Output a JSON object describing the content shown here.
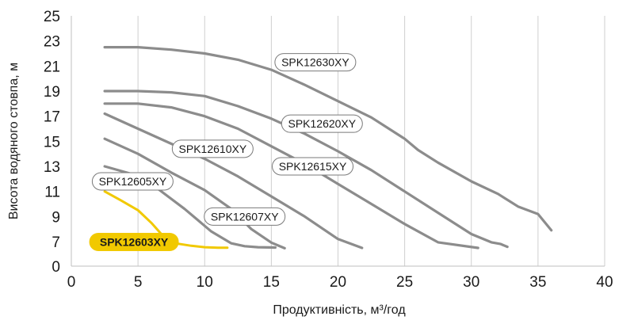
{
  "chart_data": {
    "type": "line",
    "xlabel": "Продуктивність, м³/год",
    "ylabel": "Висота водяного стовпа, м",
    "xlim": [
      0,
      40
    ],
    "ylim": [
      0,
      25
    ],
    "x_ticks": [
      0,
      5,
      10,
      15,
      20,
      25,
      30,
      35,
      40
    ],
    "y_ticks": [
      0,
      7,
      9,
      11,
      13,
      15,
      17,
      19,
      21,
      23,
      25
    ],
    "grid": "vertical",
    "series": [
      {
        "name": "SPK12630XY",
        "color": "#8c8c8c",
        "points": [
          [
            2.5,
            22.5
          ],
          [
            5,
            22.5
          ],
          [
            7.5,
            22.3
          ],
          [
            10,
            22
          ],
          [
            12.5,
            21.5
          ],
          [
            15,
            20.7
          ],
          [
            17.5,
            19.5
          ],
          [
            20,
            18.2
          ],
          [
            22.5,
            16.9
          ],
          [
            25,
            15.2
          ],
          [
            26,
            14.3
          ],
          [
            27.5,
            13.3
          ],
          [
            30,
            11.8
          ],
          [
            32,
            10.8
          ],
          [
            33.5,
            9.8
          ],
          [
            35,
            9.2
          ],
          [
            36,
            7.9
          ]
        ]
      },
      {
        "name": "SPK12620XY",
        "color": "#8c8c8c",
        "points": [
          [
            2.5,
            19
          ],
          [
            5,
            19
          ],
          [
            7.5,
            18.9
          ],
          [
            10,
            18.6
          ],
          [
            12.5,
            17.8
          ],
          [
            15,
            16.8
          ],
          [
            17.5,
            15.6
          ],
          [
            20,
            14.2
          ],
          [
            22.5,
            12.7
          ],
          [
            25,
            11
          ],
          [
            27.5,
            9.3
          ],
          [
            30,
            7.6
          ],
          [
            31.5,
            6.8
          ],
          [
            32.2,
            6.3
          ],
          [
            32.7,
            5.5
          ]
        ]
      },
      {
        "name": "SPK12615XY",
        "color": "#8c8c8c",
        "points": [
          [
            2.5,
            18
          ],
          [
            5,
            18
          ],
          [
            7.5,
            17.7
          ],
          [
            10,
            17
          ],
          [
            12.5,
            16
          ],
          [
            15,
            14.6
          ],
          [
            17.5,
            13.2
          ],
          [
            20,
            11.6
          ],
          [
            22.5,
            10
          ],
          [
            25,
            8.4
          ],
          [
            27.5,
            6.8
          ],
          [
            30.5,
            5.2
          ]
        ]
      },
      {
        "name": "SPK12610XY",
        "color": "#8c8c8c",
        "points": [
          [
            2.5,
            17.2
          ],
          [
            5,
            16
          ],
          [
            7.5,
            14.8
          ],
          [
            10,
            13.6
          ],
          [
            12.5,
            12.2
          ],
          [
            15,
            10.6
          ],
          [
            17.5,
            9
          ],
          [
            20,
            7.2
          ],
          [
            21.8,
            5.2
          ]
        ]
      },
      {
        "name": "SPK12607XY",
        "color": "#8c8c8c",
        "points": [
          [
            2.5,
            15.2
          ],
          [
            5,
            14
          ],
          [
            7.5,
            12.5
          ],
          [
            10,
            11.1
          ],
          [
            12,
            9.6
          ],
          [
            13.5,
            8
          ],
          [
            15,
            6.7
          ],
          [
            16,
            5.1
          ]
        ]
      },
      {
        "name": "SPK12605XY",
        "color": "#8c8c8c",
        "points": [
          [
            2.5,
            13
          ],
          [
            4.5,
            12.4
          ],
          [
            6.5,
            11.2
          ],
          [
            8.5,
            9.6
          ],
          [
            10.5,
            7.8
          ],
          [
            12,
            6.5
          ],
          [
            13,
            5.7
          ],
          [
            14,
            5.4
          ],
          [
            15.3,
            5.3
          ]
        ]
      },
      {
        "name": "SPK12603XY",
        "color": "#f1c900",
        "highlight": true,
        "points": [
          [
            2.5,
            11
          ],
          [
            3.7,
            10.3
          ],
          [
            5,
            9.5
          ],
          [
            6,
            8.5
          ],
          [
            7,
            7.3
          ],
          [
            8,
            6.4
          ],
          [
            9,
            5.8
          ],
          [
            10,
            5.4
          ],
          [
            11,
            5.25
          ],
          [
            11.7,
            5.25
          ]
        ]
      }
    ],
    "labels": [
      {
        "text": "SPK12630XY",
        "x": 18.3,
        "y": 21.3
      },
      {
        "text": "SPK12620XY",
        "x": 18.8,
        "y": 16.4
      },
      {
        "text": "SPK12615XY",
        "x": 18.1,
        "y": 13.0
      },
      {
        "text": "SPK12610XY",
        "x": 10.6,
        "y": 14.4
      },
      {
        "text": "SPK12607XY",
        "x": 13.0,
        "y": 9.0
      },
      {
        "text": "SPK12605XY",
        "x": 4.6,
        "y": 11.8
      },
      {
        "text": "SPK12603XY",
        "x": 4.7,
        "y": 6.9,
        "highlight": true
      }
    ]
  }
}
